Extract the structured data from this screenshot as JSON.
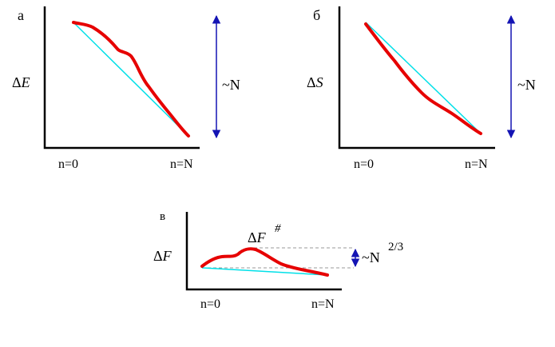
{
  "colors": {
    "axis": "#000000",
    "curve": "#e60000",
    "straight_line": "#00e0e8",
    "arrow": "#1414b4",
    "dashed": "#9a9a9a"
  },
  "panels": [
    {
      "panel_label": "а",
      "y_symbol": "Δ",
      "y_var": "E",
      "x_start": "n=0",
      "x_end": "n=N",
      "scale": "~N",
      "scale_exp": ""
    },
    {
      "panel_label": "б",
      "y_symbol": "Δ",
      "y_var": "S",
      "x_start": "n=0",
      "x_end": "n=N",
      "scale": "~N",
      "scale_exp": ""
    },
    {
      "panel_label": "в",
      "y_symbol": "Δ",
      "y_var": "F",
      "peak_symbol": "Δ",
      "peak_var": "F",
      "peak_sup": "#",
      "x_start": "n=0",
      "x_end": "n=N",
      "scale": "~N",
      "scale_exp": "2/3"
    }
  ]
}
